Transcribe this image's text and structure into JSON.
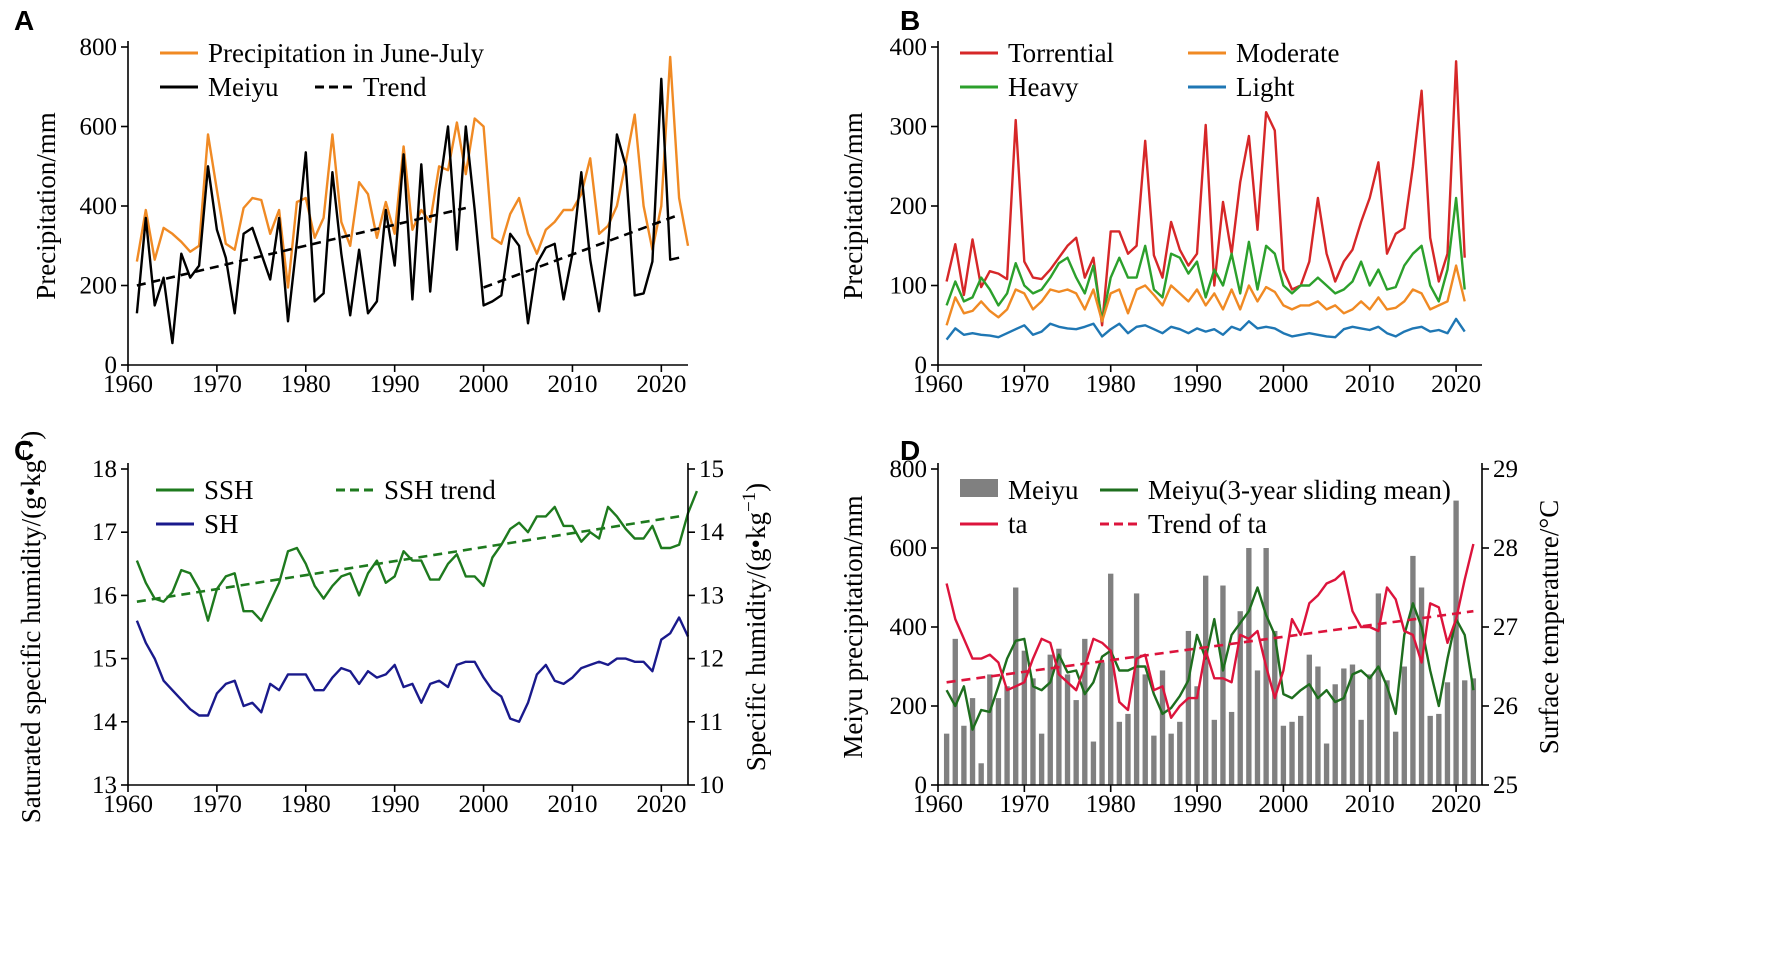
{
  "chart_data": [
    {
      "panel": "A",
      "type": "line",
      "xlabel": "",
      "ylabel": "Precipitation/mm",
      "xlim": [
        1960,
        2023
      ],
      "ylim": [
        0,
        800
      ],
      "xticks": [
        1960,
        1970,
        1980,
        1990,
        2000,
        2010,
        2020
      ],
      "yticks": [
        0,
        200,
        400,
        600,
        800
      ],
      "legend": [
        "Precipitation in June-July",
        "Meiyu",
        "Trend"
      ],
      "series": [
        {
          "name": "Precipitation in June-July",
          "color": "#f08a24",
          "x_start": 1961,
          "values": [
            260,
            390,
            265,
            345,
            330,
            310,
            285,
            300,
            580,
            440,
            305,
            290,
            395,
            420,
            415,
            330,
            390,
            195,
            410,
            420,
            320,
            370,
            580,
            360,
            300,
            460,
            430,
            320,
            410,
            330,
            550,
            340,
            390,
            360,
            500,
            490,
            610,
            480,
            620,
            600,
            320,
            305,
            380,
            420,
            330,
            280,
            340,
            360,
            390,
            390,
            430,
            520,
            330,
            350,
            400,
            510,
            630,
            400,
            290,
            400,
            775,
            420,
            300
          ]
        },
        {
          "name": "Meiyu",
          "color": "#000000",
          "x_start": 1961,
          "values": [
            130,
            370,
            150,
            220,
            55,
            280,
            220,
            250,
            500,
            340,
            270,
            130,
            330,
            345,
            280,
            215,
            370,
            110,
            310,
            535,
            160,
            180,
            485,
            280,
            125,
            290,
            130,
            160,
            390,
            250,
            530,
            165,
            505,
            185,
            440,
            600,
            290,
            600,
            390,
            150,
            160,
            175,
            330,
            300,
            105,
            255,
            295,
            305,
            165,
            280,
            485,
            265,
            135,
            300,
            580,
            500,
            175,
            180,
            260,
            720,
            265,
            270
          ]
        },
        {
          "name": "Trend",
          "color": "#000000",
          "dashed": true,
          "segments": [
            {
              "x": [
                1961,
                1998
              ],
              "y": [
                200,
                395
              ]
            },
            {
              "x": [
                2000,
                2022
              ],
              "y": [
                195,
                378
              ]
            }
          ]
        }
      ]
    },
    {
      "panel": "B",
      "type": "line",
      "xlabel": "",
      "ylabel": "Precipitation/mm",
      "xlim": [
        1960,
        2023
      ],
      "ylim": [
        0,
        400
      ],
      "xticks": [
        1960,
        1970,
        1980,
        1990,
        2000,
        2010,
        2020
      ],
      "yticks": [
        0,
        100,
        200,
        300,
        400
      ],
      "legend": [
        "Torrential",
        "Moderate",
        "Heavy",
        "Light"
      ],
      "series": [
        {
          "name": "Torrential",
          "color": "#d62728",
          "x_start": 1961,
          "values": [
            105,
            152,
            88,
            158,
            98,
            118,
            115,
            108,
            308,
            130,
            110,
            108,
            120,
            135,
            150,
            160,
            110,
            135,
            50,
            168,
            168,
            140,
            150,
            282,
            138,
            110,
            180,
            145,
            125,
            140,
            302,
            100,
            205,
            140,
            230,
            288,
            170,
            318,
            295,
            120,
            95,
            100,
            130,
            210,
            140,
            105,
            130,
            145,
            180,
            210,
            255,
            140,
            165,
            172,
            250,
            345,
            160,
            105,
            140,
            382,
            135
          ]
        },
        {
          "name": "Heavy",
          "color": "#2ca02c",
          "x_start": 1961,
          "values": [
            75,
            105,
            80,
            85,
            110,
            95,
            75,
            90,
            128,
            100,
            90,
            95,
            110,
            128,
            135,
            110,
            90,
            125,
            55,
            110,
            135,
            110,
            110,
            150,
            95,
            85,
            140,
            135,
            115,
            130,
            85,
            120,
            100,
            140,
            90,
            155,
            95,
            150,
            140,
            100,
            90,
            100,
            100,
            110,
            100,
            90,
            95,
            105,
            130,
            100,
            120,
            95,
            98,
            125,
            140,
            150,
            100,
            80,
            120,
            210,
            95
          ]
        },
        {
          "name": "Moderate",
          "color": "#f08a24",
          "x_start": 1961,
          "values": [
            50,
            85,
            65,
            68,
            80,
            68,
            60,
            70,
            95,
            90,
            70,
            80,
            95,
            92,
            95,
            90,
            70,
            95,
            55,
            90,
            95,
            65,
            95,
            100,
            88,
            75,
            100,
            90,
            80,
            95,
            75,
            90,
            70,
            95,
            70,
            100,
            80,
            98,
            92,
            75,
            70,
            75,
            75,
            80,
            70,
            75,
            65,
            70,
            80,
            70,
            85,
            70,
            72,
            80,
            95,
            90,
            70,
            75,
            80,
            125,
            80
          ]
        },
        {
          "name": "Light",
          "color": "#1f77b4",
          "x_start": 1961,
          "values": [
            32,
            46,
            38,
            40,
            38,
            37,
            35,
            40,
            45,
            50,
            38,
            42,
            52,
            48,
            46,
            45,
            48,
            52,
            36,
            45,
            52,
            40,
            48,
            50,
            45,
            40,
            48,
            45,
            40,
            46,
            42,
            45,
            38,
            48,
            44,
            55,
            46,
            48,
            46,
            40,
            36,
            38,
            40,
            38,
            36,
            35,
            45,
            48,
            46,
            44,
            48,
            40,
            36,
            42,
            46,
            48,
            42,
            44,
            40,
            58,
            42
          ]
        }
      ]
    },
    {
      "panel": "C",
      "type": "line",
      "xlabel": "",
      "ylabel": "Saturated specific humidity/(g•kg",
      "ylabel_sup": "−1",
      "y2label": "Specific humidity/(g•kg",
      "y2label_sup": "−1",
      "xlim": [
        1960,
        2023
      ],
      "ylim": [
        13,
        18
      ],
      "y2lim": [
        10,
        15
      ],
      "xticks": [
        1960,
        1970,
        1980,
        1990,
        2000,
        2010,
        2020
      ],
      "yticks": [
        13,
        14,
        15,
        16,
        17,
        18
      ],
      "y2ticks": [
        10,
        11,
        12,
        13,
        14,
        15
      ],
      "legend": [
        "SSH",
        "SSH trend",
        "SH"
      ],
      "series": [
        {
          "name": "SSH",
          "color": "#1e7a1e",
          "axis": "left",
          "x_start": 1961,
          "values": [
            16.55,
            16.2,
            15.95,
            15.9,
            16.05,
            16.4,
            16.35,
            16.1,
            15.6,
            16.1,
            16.3,
            16.35,
            15.75,
            15.75,
            15.6,
            15.9,
            16.2,
            16.7,
            16.75,
            16.5,
            16.15,
            15.95,
            16.15,
            16.3,
            16.35,
            16.0,
            16.35,
            16.55,
            16.2,
            16.3,
            16.7,
            16.55,
            16.55,
            16.25,
            16.25,
            16.5,
            16.65,
            16.3,
            16.3,
            16.15,
            16.6,
            16.8,
            17.05,
            17.15,
            17.0,
            17.25,
            17.25,
            17.4,
            17.1,
            17.1,
            16.85,
            17.0,
            16.9,
            17.4,
            17.25,
            17.05,
            16.9,
            16.9,
            17.1,
            16.75,
            16.75,
            16.8,
            17.3,
            17.65
          ]
        },
        {
          "name": "SSH trend",
          "color": "#1e7a1e",
          "axis": "left",
          "dashed": true,
          "x": [
            1961,
            2022
          ],
          "values": [
            15.9,
            17.25
          ]
        },
        {
          "name": "SH",
          "color": "#1a1a8c",
          "axis": "right",
          "x_start": 1961,
          "values": [
            12.6,
            12.25,
            12.0,
            11.65,
            11.5,
            11.35,
            11.2,
            11.1,
            11.1,
            11.45,
            11.6,
            11.65,
            11.25,
            11.3,
            11.15,
            11.6,
            11.5,
            11.75,
            11.75,
            11.75,
            11.5,
            11.5,
            11.7,
            11.85,
            11.8,
            11.6,
            11.8,
            11.7,
            11.75,
            11.9,
            11.55,
            11.6,
            11.3,
            11.6,
            11.65,
            11.55,
            11.9,
            11.95,
            11.95,
            11.7,
            11.5,
            11.4,
            11.05,
            11.0,
            11.3,
            11.75,
            11.9,
            11.65,
            11.6,
            11.7,
            11.85,
            11.9,
            11.95,
            11.9,
            12.0,
            12.0,
            11.95,
            11.95,
            11.8,
            12.3,
            12.4,
            12.65,
            12.35
          ]
        }
      ]
    },
    {
      "panel": "D",
      "type": "bar+line",
      "xlabel": "",
      "ylabel": "Meiyu precipitation/mm",
      "y2label": "Surface temperature/°C",
      "xlim": [
        1960,
        2023
      ],
      "ylim": [
        0,
        800
      ],
      "y2lim": [
        25,
        29
      ],
      "xticks": [
        1960,
        1970,
        1980,
        1990,
        2000,
        2010,
        2020
      ],
      "yticks": [
        0,
        200,
        400,
        600,
        800
      ],
      "y2ticks": [
        25,
        26,
        27,
        28,
        29
      ],
      "legend": [
        "Meiyu",
        "Meiyu(3-year sliding mean)",
        "ta",
        "Trend of ta"
      ],
      "series": [
        {
          "name": "Meiyu",
          "type": "bar",
          "color": "#808080",
          "axis": "left",
          "x_start": 1961,
          "values": [
            130,
            370,
            150,
            220,
            55,
            280,
            220,
            250,
            500,
            340,
            270,
            130,
            330,
            345,
            280,
            215,
            370,
            110,
            310,
            535,
            160,
            180,
            485,
            280,
            125,
            290,
            130,
            160,
            390,
            250,
            530,
            165,
            505,
            185,
            440,
            600,
            290,
            600,
            390,
            150,
            160,
            175,
            330,
            300,
            105,
            255,
            295,
            305,
            165,
            280,
            485,
            265,
            135,
            300,
            580,
            500,
            175,
            180,
            260,
            720,
            265,
            270
          ]
        },
        {
          "name": "Meiyu(3-year sliding mean)",
          "color": "#1e6e1e",
          "axis": "left",
          "x_start": 1961,
          "values": [
            240,
            200,
            250,
            140,
            190,
            185,
            250,
            320,
            365,
            370,
            250,
            240,
            260,
            330,
            285,
            290,
            230,
            260,
            325,
            340,
            290,
            290,
            300,
            300,
            230,
            180,
            195,
            225,
            265,
            380,
            320,
            420,
            290,
            380,
            410,
            440,
            500,
            430,
            380,
            230,
            220,
            240,
            255,
            220,
            240,
            210,
            220,
            280,
            290,
            270,
            300,
            250,
            180,
            380,
            460,
            400,
            290,
            200,
            320,
            420,
            380,
            240
          ]
        },
        {
          "name": "ta",
          "color": "#dc143c",
          "axis": "right",
          "x_start": 1961,
          "values": [
            27.55,
            27.1,
            26.85,
            26.6,
            26.6,
            26.65,
            26.55,
            26.2,
            26.25,
            26.3,
            26.6,
            26.85,
            26.8,
            26.4,
            26.3,
            26.2,
            26.5,
            26.85,
            26.8,
            26.7,
            26.05,
            25.95,
            26.6,
            26.65,
            26.2,
            26.25,
            25.85,
            26.0,
            26.1,
            26.1,
            26.7,
            26.35,
            26.35,
            26.3,
            26.9,
            26.85,
            26.95,
            26.5,
            26.1,
            26.45,
            27.1,
            26.9,
            27.3,
            27.4,
            27.55,
            27.6,
            27.7,
            27.2,
            27.0,
            27.0,
            26.95,
            27.5,
            27.35,
            26.95,
            26.9,
            26.55,
            27.3,
            27.25,
            26.8,
            27.1,
            27.6,
            28.05
          ]
        },
        {
          "name": "Trend of ta",
          "color": "#dc143c",
          "axis": "right",
          "dashed": true,
          "x": [
            1961,
            2022
          ],
          "values": [
            26.3,
            27.2
          ]
        }
      ]
    }
  ]
}
